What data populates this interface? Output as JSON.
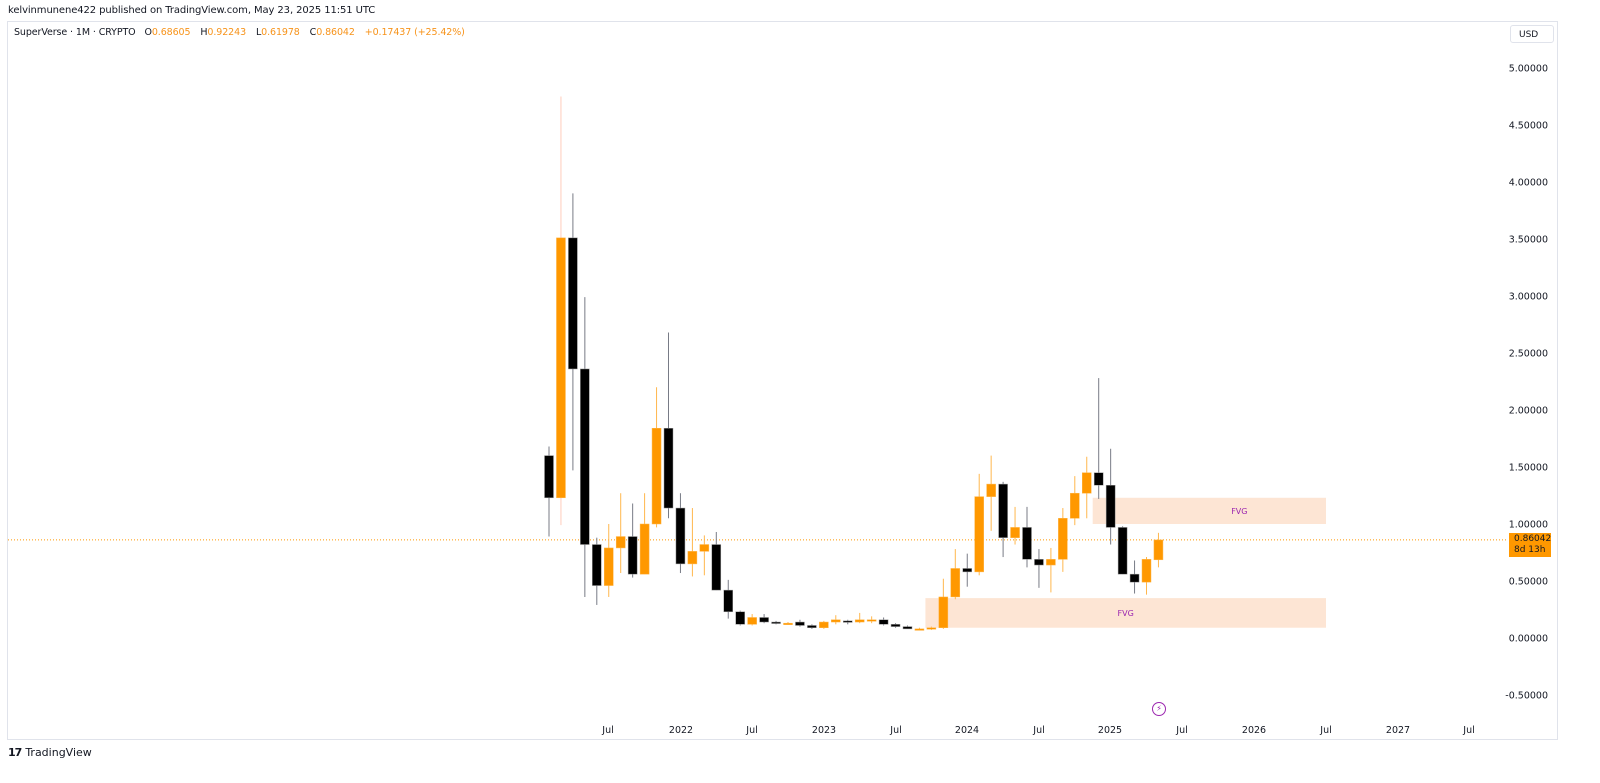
{
  "header": {
    "publish_text": "kelvinmunene422 published on TradingView.com, May 23, 2025 11:51 UTC"
  },
  "legend": {
    "symbol": "SuperVerse · 1M · CRYPTO",
    "open_label": "O",
    "open": "0.68605",
    "high_label": "H",
    "high": "0.92243",
    "low_label": "L",
    "low": "0.61978",
    "close_label": "C",
    "close": "0.86042",
    "change": "+0.17437 (+25.42%)"
  },
  "currency": {
    "label": "USD"
  },
  "price_tag": {
    "price": "0.86042",
    "countdown": "8d 13h"
  },
  "footer": {
    "brand": "TradingView",
    "logo_icon": "tradingview-logo-icon"
  },
  "events": {
    "icon": "lightning-bolt-icon"
  },
  "colors": {
    "up": "#ff9800",
    "up_wick": "#ffccbc",
    "down": "#000000",
    "down_wick": "#787b86",
    "fvg_fill": "#fde5d4",
    "fvg_text": "#9c27b0",
    "price_line": "#ff9800"
  },
  "chart_data": {
    "type": "candlestick",
    "title": "SuperVerse · 1M · CRYPTO",
    "ylabel": "USD",
    "ylim": [
      -0.55,
      5.2
    ],
    "y_ticks": [
      "5.00000",
      "4.50000",
      "4.00000",
      "3.50000",
      "3.00000",
      "2.50000",
      "2.00000",
      "1.50000",
      "1.00000",
      "0.50000",
      "0.00000",
      "-0.50000"
    ],
    "x_ticks": [
      "Jul",
      "2022",
      "Jul",
      "2023",
      "Jul",
      "2024",
      "Jul",
      "2025",
      "Jul",
      "2026",
      "Jul",
      "2027",
      "Jul"
    ],
    "grid": false,
    "current_price": 0.86042,
    "candles": [
      {
        "t": "2021-02",
        "o": 1.6,
        "h": 1.68,
        "l": 0.89,
        "c": 1.23
      },
      {
        "t": "2021-03",
        "o": 1.23,
        "h": 4.75,
        "l": 0.99,
        "c": 3.51
      },
      {
        "t": "2021-04",
        "o": 3.51,
        "h": 3.9,
        "l": 1.47,
        "c": 2.36
      },
      {
        "t": "2021-05",
        "o": 2.36,
        "h": 2.99,
        "l": 0.36,
        "c": 0.82
      },
      {
        "t": "2021-06",
        "o": 0.82,
        "h": 0.88,
        "l": 0.29,
        "c": 0.46
      },
      {
        "t": "2021-07",
        "o": 0.46,
        "h": 1.0,
        "l": 0.36,
        "c": 0.79
      },
      {
        "t": "2021-08",
        "o": 0.79,
        "h": 1.27,
        "l": 0.57,
        "c": 0.89
      },
      {
        "t": "2021-09",
        "o": 0.89,
        "h": 1.18,
        "l": 0.53,
        "c": 0.56
      },
      {
        "t": "2021-10",
        "o": 0.56,
        "h": 1.27,
        "l": 0.56,
        "c": 1.0
      },
      {
        "t": "2021-11",
        "o": 1.0,
        "h": 2.2,
        "l": 0.97,
        "c": 1.84
      },
      {
        "t": "2021-12",
        "o": 1.84,
        "h": 2.68,
        "l": 1.05,
        "c": 1.14
      },
      {
        "t": "2022-01",
        "o": 1.14,
        "h": 1.27,
        "l": 0.57,
        "c": 0.65
      },
      {
        "t": "2022-02",
        "o": 0.65,
        "h": 1.14,
        "l": 0.54,
        "c": 0.76
      },
      {
        "t": "2022-03",
        "o": 0.76,
        "h": 0.9,
        "l": 0.55,
        "c": 0.82
      },
      {
        "t": "2022-04",
        "o": 0.82,
        "h": 0.93,
        "l": 0.42,
        "c": 0.42
      },
      {
        "t": "2022-05",
        "o": 0.42,
        "h": 0.51,
        "l": 0.17,
        "c": 0.23
      },
      {
        "t": "2022-06",
        "o": 0.23,
        "h": 0.24,
        "l": 0.11,
        "c": 0.12
      },
      {
        "t": "2022-07",
        "o": 0.12,
        "h": 0.21,
        "l": 0.11,
        "c": 0.18
      },
      {
        "t": "2022-08",
        "o": 0.18,
        "h": 0.21,
        "l": 0.13,
        "c": 0.14
      },
      {
        "t": "2022-09",
        "o": 0.14,
        "h": 0.15,
        "l": 0.12,
        "c": 0.13
      },
      {
        "t": "2022-10",
        "o": 0.13,
        "h": 0.14,
        "l": 0.12,
        "c": 0.13
      },
      {
        "t": "2022-11",
        "o": 0.14,
        "h": 0.16,
        "l": 0.1,
        "c": 0.11
      },
      {
        "t": "2022-12",
        "o": 0.11,
        "h": 0.12,
        "l": 0.08,
        "c": 0.09
      },
      {
        "t": "2023-01",
        "o": 0.09,
        "h": 0.15,
        "l": 0.08,
        "c": 0.14
      },
      {
        "t": "2023-02",
        "o": 0.14,
        "h": 0.2,
        "l": 0.12,
        "c": 0.16
      },
      {
        "t": "2023-03",
        "o": 0.15,
        "h": 0.16,
        "l": 0.12,
        "c": 0.14
      },
      {
        "t": "2023-04",
        "o": 0.14,
        "h": 0.22,
        "l": 0.13,
        "c": 0.16
      },
      {
        "t": "2023-05",
        "o": 0.15,
        "h": 0.19,
        "l": 0.13,
        "c": 0.16
      },
      {
        "t": "2023-06",
        "o": 0.16,
        "h": 0.18,
        "l": 0.11,
        "c": 0.12
      },
      {
        "t": "2023-07",
        "o": 0.12,
        "h": 0.13,
        "l": 0.09,
        "c": 0.1
      },
      {
        "t": "2023-08",
        "o": 0.1,
        "h": 0.11,
        "l": 0.08,
        "c": 0.08
      },
      {
        "t": "2023-09",
        "o": 0.08,
        "h": 0.09,
        "l": 0.07,
        "c": 0.08
      },
      {
        "t": "2023-10",
        "o": 0.08,
        "h": 0.1,
        "l": 0.07,
        "c": 0.09
      },
      {
        "t": "2023-11",
        "o": 0.09,
        "h": 0.52,
        "l": 0.08,
        "c": 0.36
      },
      {
        "t": "2023-12",
        "o": 0.36,
        "h": 0.78,
        "l": 0.34,
        "c": 0.61
      },
      {
        "t": "2024-01",
        "o": 0.61,
        "h": 0.74,
        "l": 0.45,
        "c": 0.58
      },
      {
        "t": "2024-02",
        "o": 0.58,
        "h": 1.44,
        "l": 0.55,
        "c": 1.24
      },
      {
        "t": "2024-03",
        "o": 1.24,
        "h": 1.6,
        "l": 0.94,
        "c": 1.35
      },
      {
        "t": "2024-04",
        "o": 1.35,
        "h": 1.37,
        "l": 0.71,
        "c": 0.88
      },
      {
        "t": "2024-05",
        "o": 0.88,
        "h": 1.15,
        "l": 0.82,
        "c": 0.97
      },
      {
        "t": "2024-06",
        "o": 0.97,
        "h": 1.15,
        "l": 0.62,
        "c": 0.69
      },
      {
        "t": "2024-07",
        "o": 0.69,
        "h": 0.78,
        "l": 0.44,
        "c": 0.64
      },
      {
        "t": "2024-08",
        "o": 0.64,
        "h": 0.79,
        "l": 0.4,
        "c": 0.69
      },
      {
        "t": "2024-09",
        "o": 0.69,
        "h": 1.14,
        "l": 0.58,
        "c": 1.05
      },
      {
        "t": "2024-10",
        "o": 1.05,
        "h": 1.42,
        "l": 0.99,
        "c": 1.27
      },
      {
        "t": "2024-11",
        "o": 1.27,
        "h": 1.59,
        "l": 1.05,
        "c": 1.45
      },
      {
        "t": "2024-12",
        "o": 1.45,
        "h": 2.28,
        "l": 1.22,
        "c": 1.34
      },
      {
        "t": "2025-01",
        "o": 1.34,
        "h": 1.66,
        "l": 0.82,
        "c": 0.97
      },
      {
        "t": "2025-02",
        "o": 0.97,
        "h": 0.98,
        "l": 0.56,
        "c": 0.56
      },
      {
        "t": "2025-03",
        "o": 0.56,
        "h": 0.68,
        "l": 0.39,
        "c": 0.49
      },
      {
        "t": "2025-04",
        "o": 0.49,
        "h": 0.71,
        "l": 0.38,
        "c": 0.69
      },
      {
        "t": "2025-05",
        "o": 0.68605,
        "h": 0.92243,
        "l": 0.61978,
        "c": 0.86042
      }
    ],
    "annotations": [
      {
        "type": "rectangle",
        "label": "FVG",
        "y_top": 1.23,
        "y_bottom": 1.0,
        "x_start": "2024-12",
        "x_end": "2026-07"
      },
      {
        "type": "rectangle",
        "label": "FVG",
        "y_top": 0.35,
        "y_bottom": 0.09,
        "x_start": "2023-10",
        "x_end": "2026-07"
      }
    ]
  }
}
